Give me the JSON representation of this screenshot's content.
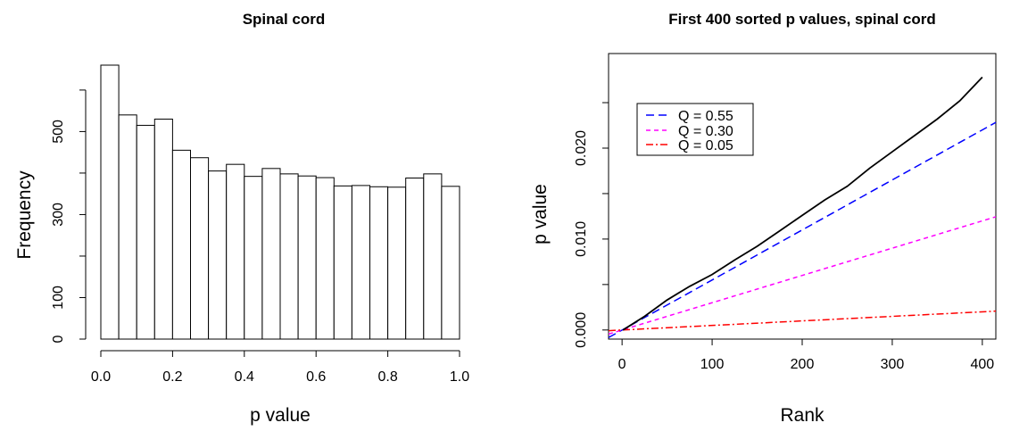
{
  "chart_data": [
    {
      "type": "bar",
      "title": "Spinal cord",
      "xlabel": "p value",
      "ylabel": "Frequency",
      "xlim": [
        0.0,
        1.0
      ],
      "ylim": [
        0,
        660
      ],
      "x_ticks": [
        "0.0",
        "0.2",
        "0.4",
        "0.6",
        "0.8",
        "1.0"
      ],
      "y_ticks": [
        "0",
        "100",
        "300",
        "500"
      ],
      "bin_width": 0.05,
      "values": [
        660,
        540,
        515,
        530,
        455,
        437,
        405,
        421,
        392,
        411,
        398,
        393,
        389,
        369,
        370,
        367,
        366,
        388,
        398,
        368
      ]
    },
    {
      "type": "line",
      "title": "First 400 sorted p values, spinal cord",
      "xlabel": "Rank",
      "ylabel": "p value",
      "xlim": [
        -15,
        415
      ],
      "ylim": [
        -0.001,
        0.0304
      ],
      "x_ticks": [
        "0",
        "100",
        "200",
        "300",
        "400"
      ],
      "y_ticks": [
        "0.000",
        "0.010",
        "0.020"
      ],
      "legend_position": "top-left",
      "series": [
        {
          "x": [
            1,
            25,
            50,
            75,
            100,
            125,
            150,
            175,
            200,
            225,
            250,
            275,
            300,
            325,
            350,
            375,
            400
          ],
          "y": [
            0.0,
            0.0015,
            0.0033,
            0.0048,
            0.0061,
            0.0077,
            0.0092,
            0.0109,
            0.0126,
            0.0143,
            0.0158,
            0.0178,
            0.0196,
            0.0214,
            0.0232,
            0.0252,
            0.0278
          ]
        }
      ],
      "reference_lines": [
        {
          "name": "Q = 0.55",
          "x": [
            -15,
            415
          ],
          "y": [
            -0.00083,
            0.02283
          ]
        },
        {
          "name": "Q = 0.30",
          "x": [
            -15,
            415
          ],
          "y": [
            -0.00045,
            0.01245
          ]
        },
        {
          "name": "Q = 0.05",
          "x": [
            -15,
            415
          ],
          "y": [
            -7.5e-05,
            0.002075
          ]
        }
      ]
    }
  ],
  "colors": {
    "q055": "#0000ff",
    "q030": "#ff00ff",
    "q005": "#ff0000",
    "data": "#000000"
  }
}
